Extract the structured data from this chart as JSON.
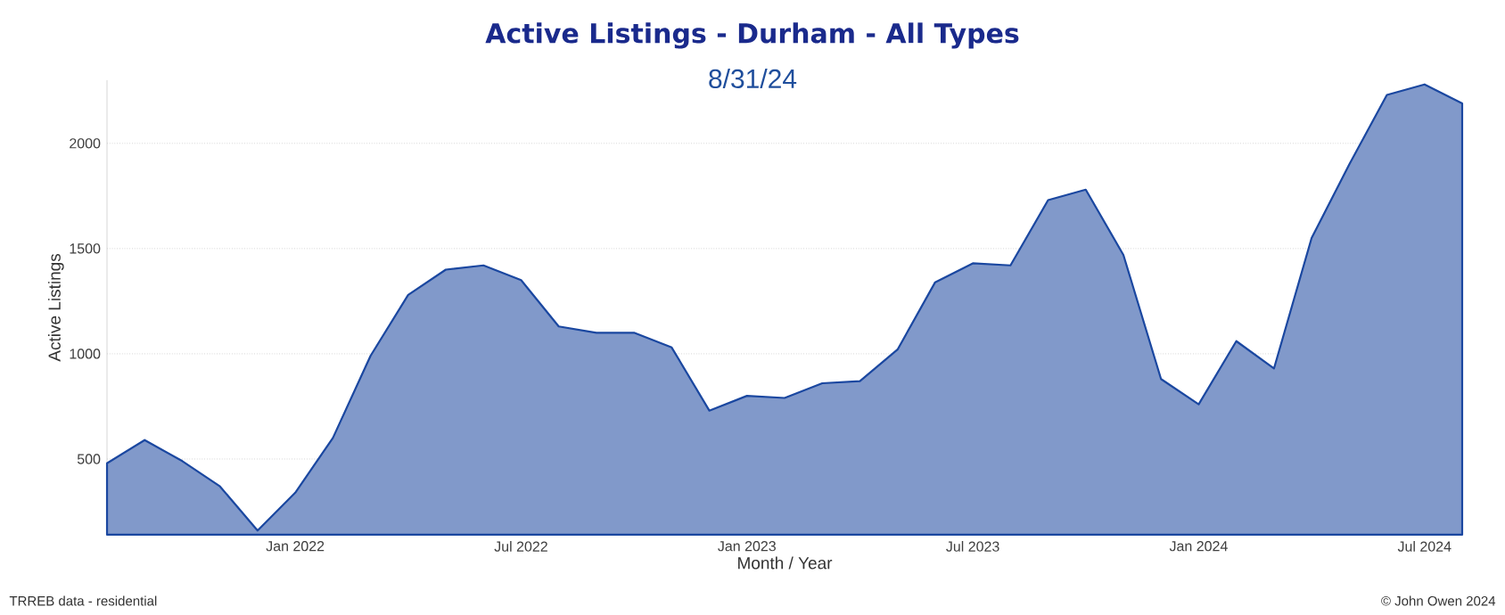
{
  "chart_data": {
    "type": "area",
    "title": "Active Listings - Durham - All Types",
    "subtitle": "8/31/24",
    "xlabel": "Month / Year",
    "ylabel": "Active Listings",
    "annotations": [
      "TRREB data - residential",
      "© John Owen 2024"
    ],
    "x": [
      "2021-08",
      "2021-09",
      "2021-10",
      "2021-11",
      "2021-12",
      "2022-01",
      "2022-02",
      "2022-03",
      "2022-04",
      "2022-05",
      "2022-06",
      "2022-07",
      "2022-08",
      "2022-09",
      "2022-10",
      "2022-11",
      "2022-12",
      "2023-01",
      "2023-02",
      "2023-03",
      "2023-04",
      "2023-05",
      "2023-06",
      "2023-07",
      "2023-08",
      "2023-09",
      "2023-10",
      "2023-11",
      "2023-12",
      "2024-01",
      "2024-02",
      "2024-03",
      "2024-04",
      "2024-05",
      "2024-06",
      "2024-07",
      "2024-08"
    ],
    "series": [
      {
        "color": "#1a47a0",
        "values": [
          480,
          590,
          490,
          370,
          160,
          340,
          600,
          990,
          1280,
          1400,
          1420,
          1350,
          1130,
          1100,
          1100,
          1030,
          730,
          800,
          790,
          860,
          870,
          1020,
          1340,
          1430,
          1420,
          1730,
          1780,
          1470,
          880,
          760,
          1060,
          930,
          1550,
          1900,
          2230,
          2280,
          2190
        ]
      }
    ],
    "xlim": [
      "2021-08",
      "2024-08"
    ],
    "xticks": [
      {
        "value": "2022-01",
        "label": "Jan 2022"
      },
      {
        "value": "2022-07",
        "label": "Jul 2022"
      },
      {
        "value": "2023-01",
        "label": "Jan 2023"
      },
      {
        "value": "2023-07",
        "label": "Jul 2023"
      },
      {
        "value": "2024-01",
        "label": "Jan 2024"
      },
      {
        "value": "2024-07",
        "label": "Jul 2024"
      }
    ],
    "ylim": [
      140,
      2300
    ],
    "yticks": [
      500,
      1000,
      1500,
      2000
    ],
    "grid": "y"
  }
}
